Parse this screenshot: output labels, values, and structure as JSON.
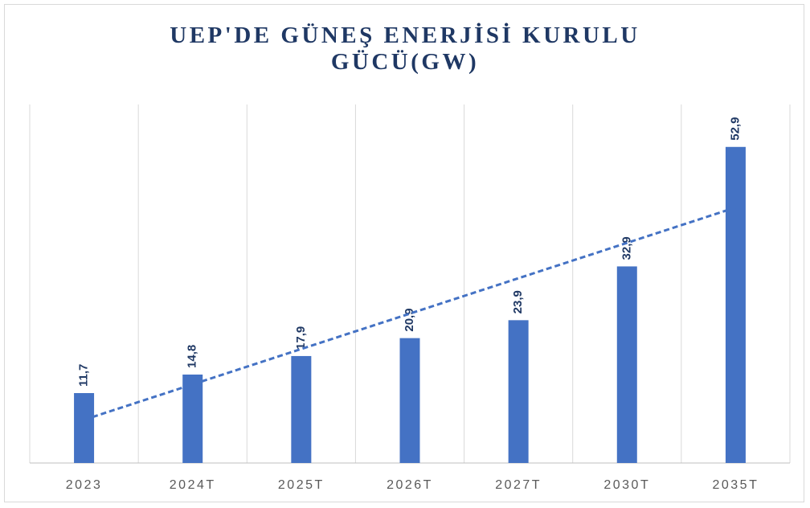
{
  "chart_data": {
    "type": "bar",
    "title": "UEP'DE GÜNEŞ ENERJİSİ KURULU GÜCÜ(GW)",
    "categories": [
      "2023",
      "2024T",
      "2025T",
      "2026T",
      "2027T",
      "2030T",
      "2035T"
    ],
    "values": [
      11.7,
      14.8,
      17.9,
      20.9,
      23.9,
      32.9,
      52.9
    ],
    "value_labels": [
      "11,7",
      "14,8",
      "17,9",
      "20,9",
      "23,9",
      "32,9",
      "52,9"
    ],
    "color": "#4472c4",
    "ylim": [
      0,
      60
    ],
    "trendline": "linear"
  }
}
